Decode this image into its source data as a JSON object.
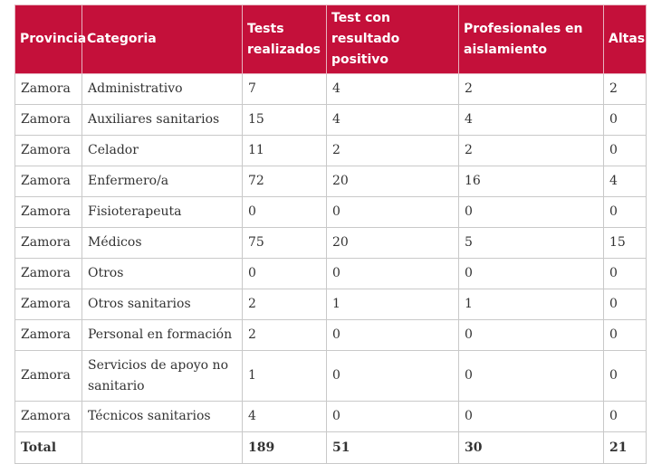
{
  "table": {
    "headers": [
      "Provincia",
      "Categoria",
      "Tests realizados",
      "Test con resultado positivo",
      "Profesionales en aislamiento",
      "Altas"
    ],
    "rows": [
      [
        "Zamora",
        "Administrativo",
        "7",
        "4",
        "2",
        "2"
      ],
      [
        "Zamora",
        "Auxiliares sanitarios",
        "15",
        "4",
        "4",
        "0"
      ],
      [
        "Zamora",
        "Celador",
        "11",
        "2",
        "2",
        "0"
      ],
      [
        "Zamora",
        "Enfermero/a",
        "72",
        "20",
        "16",
        "4"
      ],
      [
        "Zamora",
        "Fisioterapeuta",
        "0",
        "0",
        "0",
        "0"
      ],
      [
        "Zamora",
        "Médicos",
        "75",
        "20",
        "5",
        "15"
      ],
      [
        "Zamora",
        "Otros",
        "0",
        "0",
        "0",
        "0"
      ],
      [
        "Zamora",
        "Otros sanitarios",
        "2",
        "1",
        "1",
        "0"
      ],
      [
        "Zamora",
        "Personal en formación",
        "2",
        "0",
        "0",
        "0"
      ],
      [
        "Zamora",
        "Servicios de apoyo no sanitario",
        "1",
        "0",
        "0",
        "0"
      ],
      [
        "Zamora",
        "Técnicos sanitarios",
        "4",
        "0",
        "0",
        "0"
      ]
    ],
    "total": [
      "Total",
      "",
      "189",
      "51",
      "30",
      "21"
    ]
  },
  "colors": {
    "header_background": "#c4103a",
    "header_text": "#ffffff",
    "border": "#c9c9c9"
  }
}
